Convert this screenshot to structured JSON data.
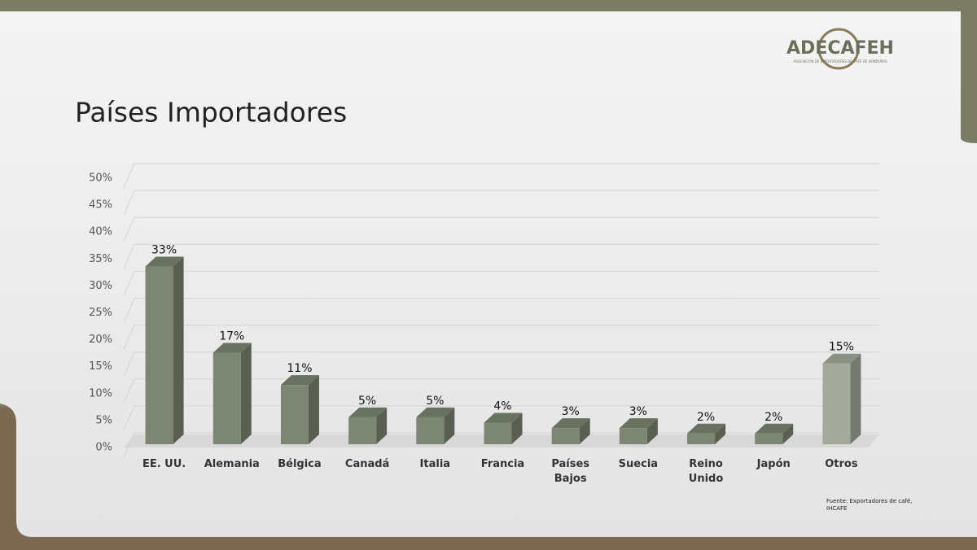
{
  "logo": {
    "name": "ADECAFEH",
    "subtitle": "ASOCIACIÓN DE EXPORTADORES DE CAFÉ DE HONDURAS"
  },
  "source": "Fuente: Exportadores de café, IHCAFE",
  "chart_data": {
    "type": "bar",
    "title": "Países Importadores",
    "categories": [
      "EE. UU.",
      "Alemania",
      "Bélgica",
      "Canadá",
      "Italia",
      "Francia",
      "Países Bajos",
      "Suecia",
      "Reino Unido",
      "Japón",
      "Otros"
    ],
    "values": [
      33,
      17,
      11,
      5,
      5,
      4,
      3,
      3,
      2,
      2,
      15
    ],
    "value_labels": [
      "33%",
      "17%",
      "11%",
      "5%",
      "5%",
      "4%",
      "3%",
      "3%",
      "2%",
      "2%",
      "15%"
    ],
    "colors": [
      "#7c8672",
      "#7c8672",
      "#7c8672",
      "#7c8672",
      "#7c8672",
      "#7c8672",
      "#7c8672",
      "#7c8672",
      "#7c8672",
      "#7c8672",
      "#a3aa9c"
    ],
    "ylim": [
      0,
      50
    ],
    "yticks": [
      {
        "value": 0,
        "label": "0%"
      },
      {
        "value": 5,
        "label": "5%"
      },
      {
        "value": 10,
        "label": "10%"
      },
      {
        "value": 15,
        "label": "15%"
      },
      {
        "value": 20,
        "label": "20%"
      },
      {
        "value": 25,
        "label": "25%"
      },
      {
        "value": 30,
        "label": "30%"
      },
      {
        "value": 35,
        "label": "35%"
      },
      {
        "value": 40,
        "label": "40%"
      },
      {
        "value": 45,
        "label": "45%"
      },
      {
        "value": 50,
        "label": "50%"
      }
    ],
    "grid": true
  }
}
